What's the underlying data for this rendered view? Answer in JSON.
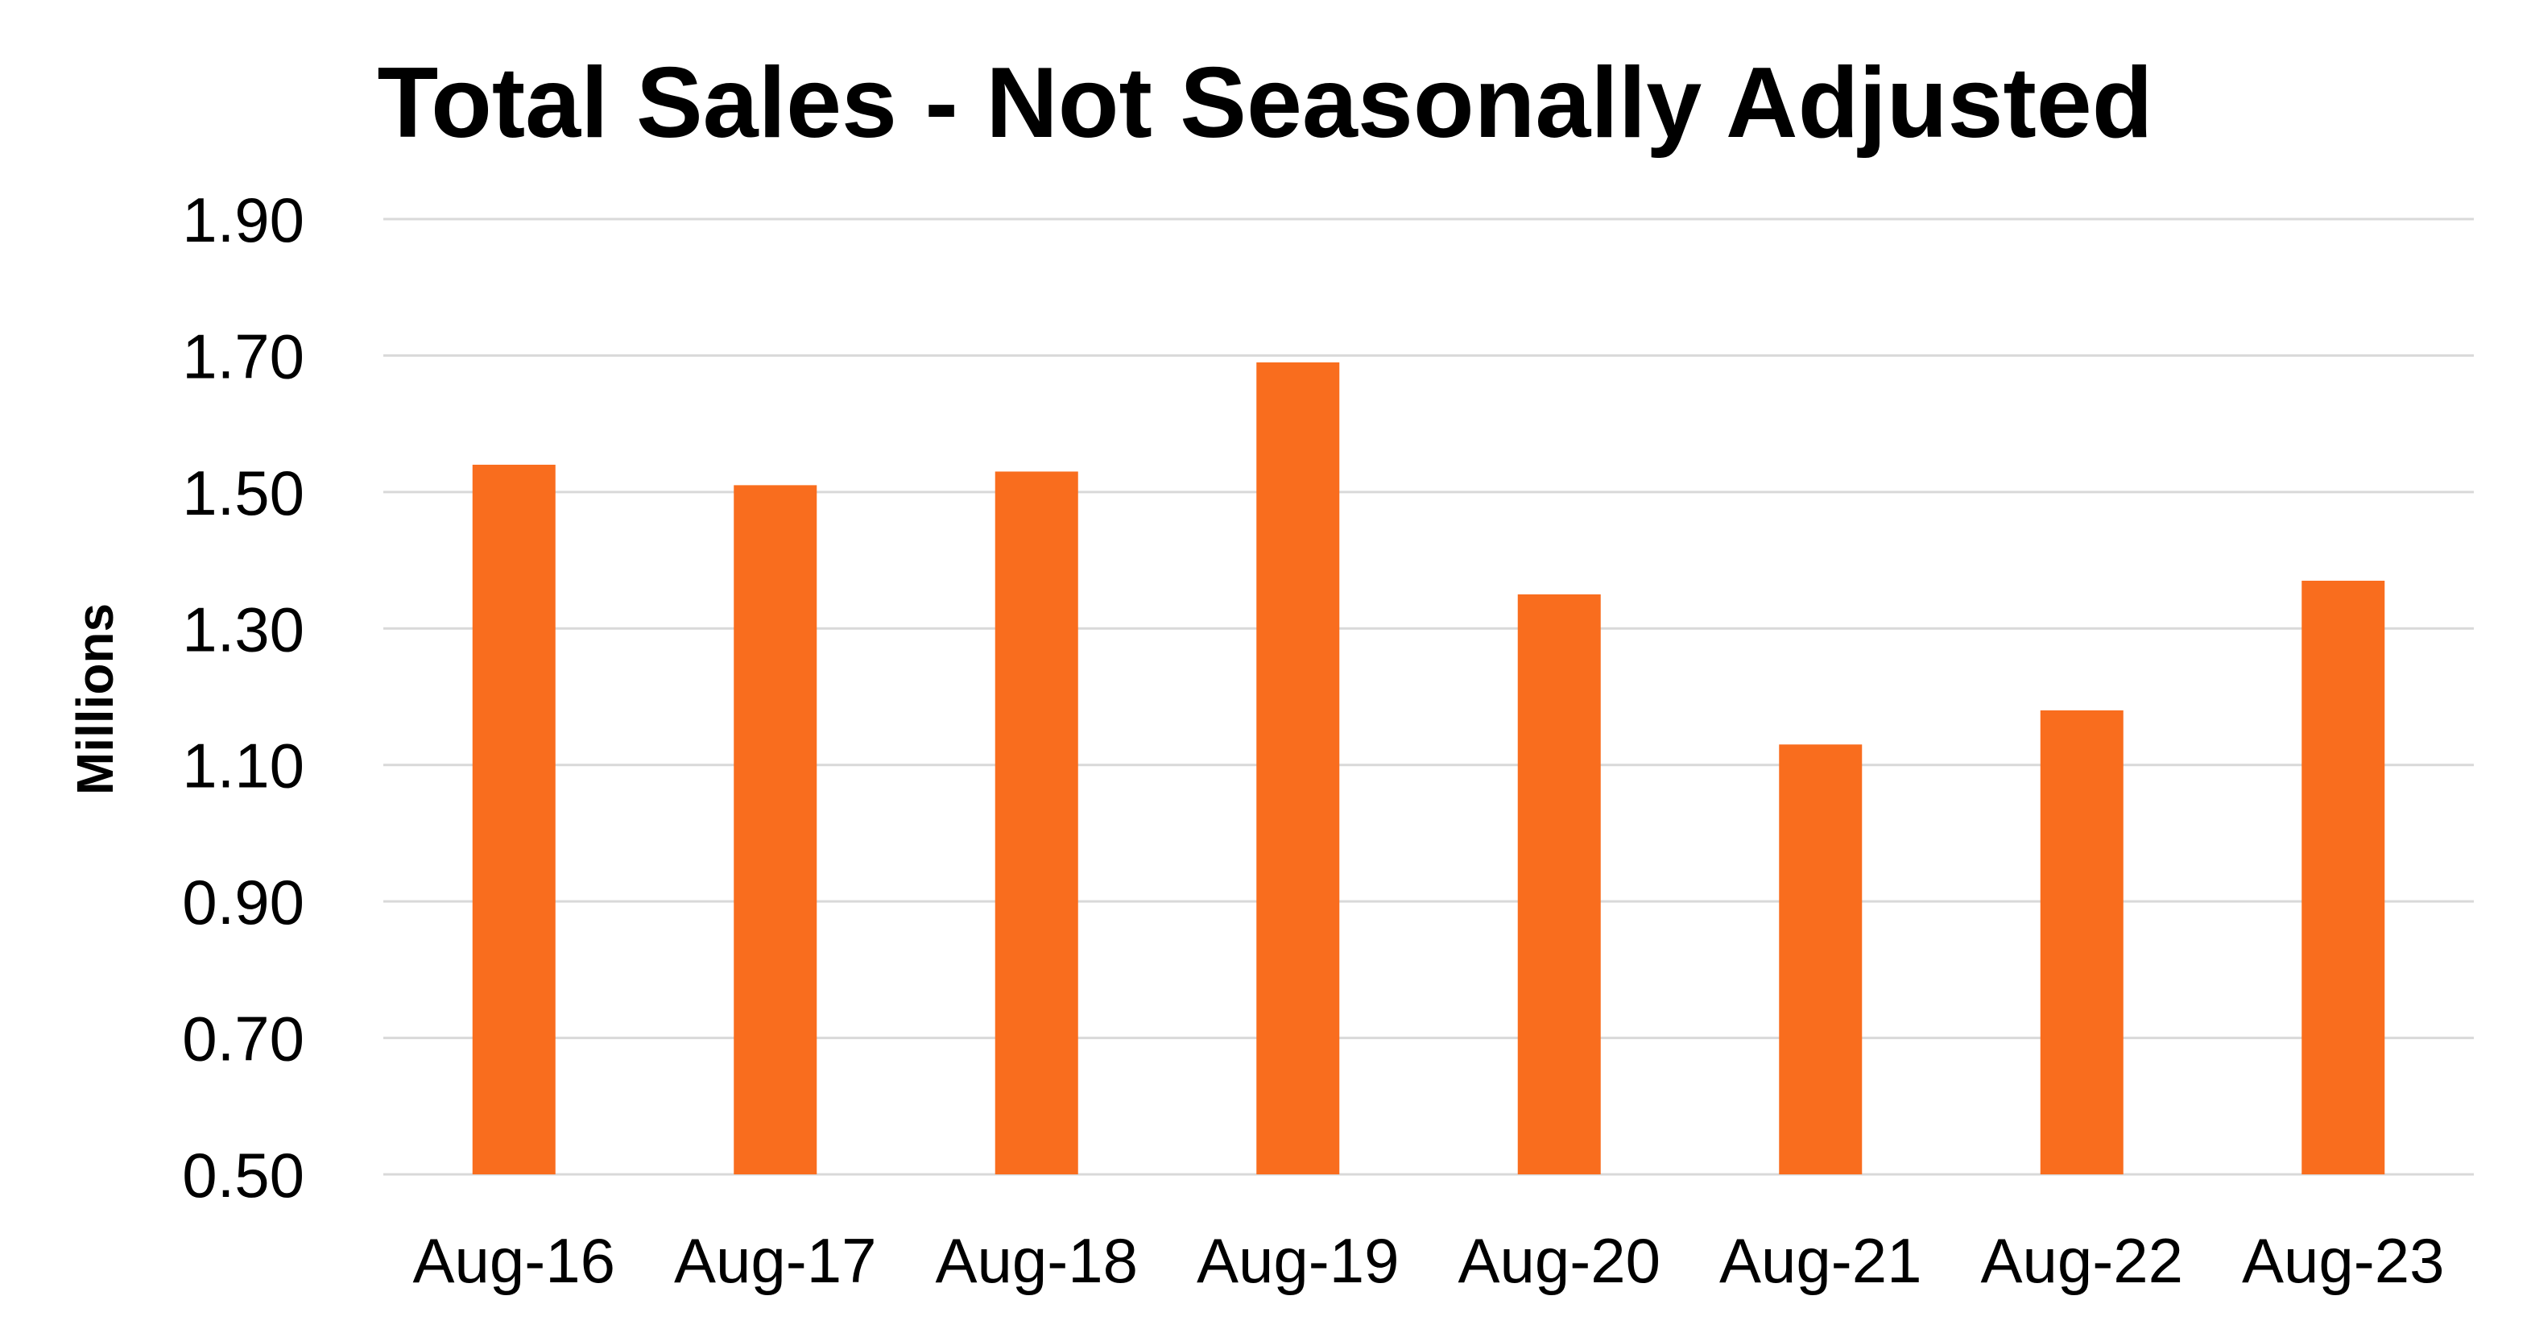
{
  "chart_data": {
    "type": "bar",
    "title": "Total Sales - Not Seasonally Adjusted",
    "xlabel": "",
    "ylabel": "Millions",
    "categories": [
      "Aug-16",
      "Aug-17",
      "Aug-18",
      "Aug-19",
      "Aug-20",
      "Aug-21",
      "Aug-22",
      "Aug-23"
    ],
    "series": [
      {
        "values": [
          1.54,
          1.51,
          1.53,
          1.69,
          1.35,
          1.13,
          1.18,
          1.37
        ]
      }
    ],
    "ylim": [
      0.5,
      1.9
    ],
    "yticks": [
      "0.50",
      "0.70",
      "0.90",
      "1.10",
      "1.30",
      "1.50",
      "1.70",
      "1.90"
    ],
    "grid": true,
    "legend": "none",
    "colors": {
      "bar": "#F96D1E",
      "gridline": "#D9D9D9",
      "text": "#000000"
    }
  }
}
